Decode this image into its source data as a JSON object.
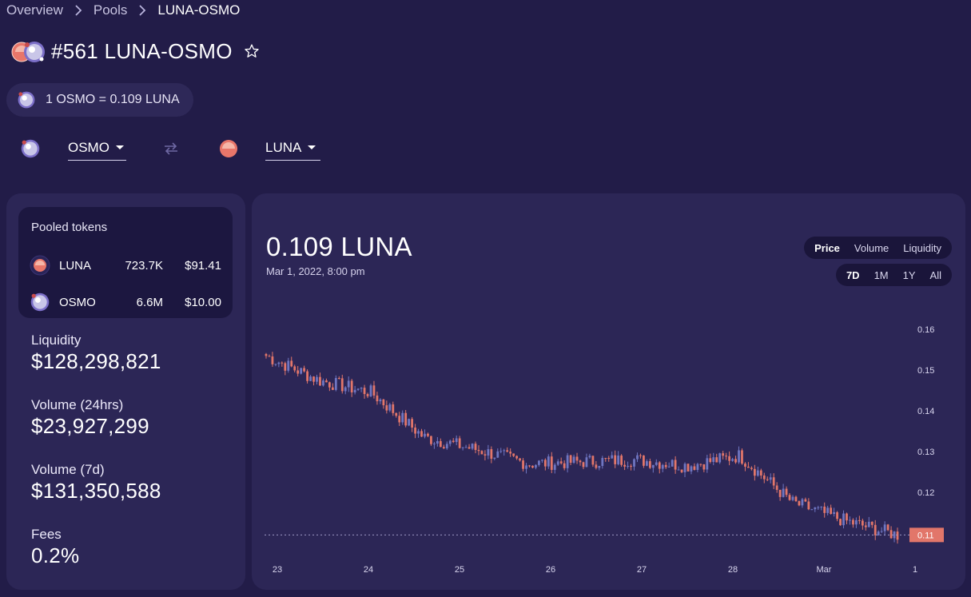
{
  "breadcrumb": {
    "overview": "Overview",
    "pools": "Pools",
    "current": "LUNA-OSMO"
  },
  "pool": {
    "title": "#561 LUNA-OSMO",
    "rate": "1 OSMO = 0.109 LUNA"
  },
  "selector": {
    "from": "OSMO",
    "to": "LUNA"
  },
  "pooled": {
    "title": "Pooled tokens",
    "tokens": [
      {
        "symbol": "LUNA",
        "amount": "723.7K",
        "value": "$91.41"
      },
      {
        "symbol": "OSMO",
        "amount": "6.6M",
        "value": "$10.00"
      }
    ]
  },
  "stats": {
    "liquidity": {
      "label": "Liquidity",
      "value": "$128,298,821"
    },
    "volume24": {
      "label": "Volume (24hrs)",
      "value": "$23,927,299"
    },
    "volume7": {
      "label": "Volume (7d)",
      "value": "$131,350,588"
    },
    "fees": {
      "label": "Fees",
      "value": "0.2%"
    }
  },
  "chart_header": {
    "price": "0.109 LUNA",
    "date": "Mar 1, 2022, 8:00 pm"
  },
  "chart_tabs": [
    "Price",
    "Volume",
    "Liquidity"
  ],
  "range_tabs": [
    "7D",
    "1M",
    "1Y",
    "All"
  ],
  "active_chart_tab": "Price",
  "active_range_tab": "7D",
  "colors": {
    "up": "#6f76c2",
    "down": "#e2766a",
    "price_tag": "#e2766a",
    "background": "#221c48",
    "panel": "#2c2656"
  },
  "chart_data": {
    "type": "candlestick",
    "x_tick_labels": [
      "23",
      "24",
      "25",
      "26",
      "27",
      "28",
      "Mar",
      "1"
    ],
    "y_tick_labels": [
      "0.16",
      "0.15",
      "0.14",
      "0.13",
      "0.12",
      "0.11"
    ],
    "current_price_label": "0.11",
    "ylim": [
      0.108,
      0.162
    ],
    "series": [
      {
        "day": "23",
        "close": 0.1535
      },
      {
        "day": "24",
        "close": 0.1475
      },
      {
        "day": "24.5",
        "close": 0.1445
      },
      {
        "day": "25",
        "close": 0.1335
      },
      {
        "day": "25.5",
        "close": 0.1305
      },
      {
        "day": "26",
        "close": 0.127
      },
      {
        "day": "26.5",
        "close": 0.1275
      },
      {
        "day": "27",
        "close": 0.128
      },
      {
        "day": "27.5",
        "close": 0.1265
      },
      {
        "day": "28",
        "close": 0.129
      },
      {
        "day": "28.5",
        "close": 0.1175
      },
      {
        "day": "Mar",
        "close": 0.113
      },
      {
        "day": "1",
        "close": 0.1095
      }
    ]
  }
}
